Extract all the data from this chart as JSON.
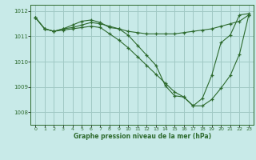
{
  "line1_x": [
    0,
    1,
    2,
    3,
    4,
    5,
    6,
    7,
    8,
    9,
    10,
    11,
    12,
    13,
    14,
    15,
    16,
    17,
    18,
    19,
    20,
    21,
    22,
    23
  ],
  "line1_y": [
    1011.75,
    1011.3,
    1011.2,
    1011.3,
    1011.35,
    1011.45,
    1011.55,
    1011.5,
    1011.4,
    1011.3,
    1011.2,
    1011.15,
    1011.1,
    1011.1,
    1011.1,
    1011.1,
    1011.15,
    1011.2,
    1011.25,
    1011.3,
    1011.4,
    1011.5,
    1011.6,
    1011.85
  ],
  "line2_x": [
    0,
    1,
    2,
    3,
    4,
    5,
    6,
    7,
    8,
    9,
    10,
    11,
    12,
    13,
    14,
    15,
    16,
    17,
    18,
    19,
    20,
    21,
    22,
    23
  ],
  "line2_y": [
    1011.75,
    1011.3,
    1011.2,
    1011.3,
    1011.45,
    1011.6,
    1011.65,
    1011.55,
    1011.35,
    1011.3,
    1011.05,
    1010.65,
    1010.25,
    1009.85,
    1009.05,
    1008.65,
    1008.6,
    1008.25,
    1008.55,
    1009.45,
    1010.75,
    1011.05,
    1011.85,
    1011.9
  ],
  "line3_x": [
    0,
    1,
    2,
    3,
    4,
    5,
    6,
    7,
    8,
    9,
    10,
    11,
    12,
    13,
    14,
    15,
    16,
    17,
    18,
    19,
    20,
    21,
    22,
    23
  ],
  "line3_y": [
    1011.75,
    1011.3,
    1011.2,
    1011.25,
    1011.3,
    1011.35,
    1011.4,
    1011.35,
    1011.1,
    1010.85,
    1010.55,
    1010.2,
    1009.85,
    1009.5,
    1009.15,
    1008.8,
    1008.6,
    1008.25,
    1008.25,
    1008.5,
    1008.95,
    1009.45,
    1010.3,
    1011.85
  ],
  "line_color": "#2d6a2d",
  "bg_color": "#c8eae8",
  "grid_color": "#a0c8c4",
  "xlabel": "Graphe pression niveau de la mer (hPa)",
  "ylim": [
    1007.5,
    1012.25
  ],
  "xlim": [
    -0.5,
    23.5
  ],
  "yticks": [
    1008,
    1009,
    1010,
    1011,
    1012
  ],
  "xticks": [
    0,
    1,
    2,
    3,
    4,
    5,
    6,
    7,
    8,
    9,
    10,
    11,
    12,
    13,
    14,
    15,
    16,
    17,
    18,
    19,
    20,
    21,
    22,
    23
  ]
}
